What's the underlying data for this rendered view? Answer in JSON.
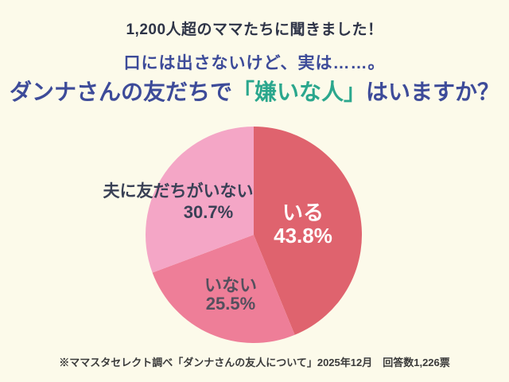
{
  "page": {
    "background": "#FCFAEA"
  },
  "colors": {
    "bg": "#FCFAEA",
    "ink": "#2E3447",
    "navy": "#3D4B99",
    "teal": "#2BA78D",
    "label-dark": "#3A4156",
    "label-gray": "#55505E",
    "footer": "#3A3A3A"
  },
  "header": {
    "top_title": "1,200人超のママたちに聞きました！",
    "subtitle": "口には出さないけど、実は……。",
    "main_title_prefix": "ダンナさんの友だちで",
    "main_title_highlight": "「嫌いな人」",
    "main_title_suffix": "はいますか？"
  },
  "chart_data": {
    "type": "pie",
    "title": "ダンナさんの友だちで「嫌いな人」はいますか？",
    "start_angle": "12-oclock, clockwise",
    "categories": [
      "いる",
      "いない",
      "夫に友だちがいない"
    ],
    "values": [
      43.8,
      25.5,
      30.7
    ],
    "colors": [
      "#DF636E",
      "#EE7E98",
      "#F4A6C6"
    ],
    "labels": [
      {
        "name": "いる",
        "pct": "43.8%"
      },
      {
        "name": "いない",
        "pct": "25.5%"
      },
      {
        "name": "夫に友だちがいない",
        "pct": "30.7%"
      }
    ]
  },
  "footer": {
    "note": "※ママスタセレクト調べ「ダンナさんの友人について」2025年12月　回答数1,226票"
  }
}
